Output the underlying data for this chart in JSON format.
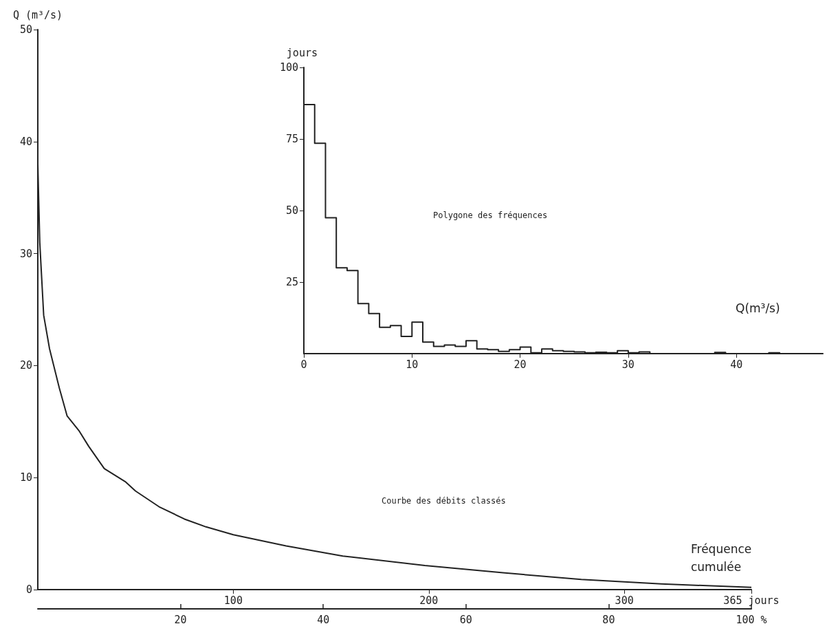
{
  "chart_data": [
    {
      "type": "line",
      "ylabel": "Q (m³/s)",
      "xlabel": "Fréquence cumulée",
      "annotations": [
        "Courbe des débits classés"
      ],
      "color": "#222222",
      "x": [
        0,
        1,
        3,
        6,
        11,
        15,
        21,
        26,
        34,
        45,
        50,
        62,
        75,
        86,
        100,
        127,
        156,
        198,
        238,
        278,
        319,
        365
      ],
      "values": [
        38,
        31,
        24.5,
        21.5,
        18,
        15.5,
        14.2,
        12.8,
        10.8,
        9.6,
        8.8,
        7.4,
        6.3,
        5.6,
        4.9,
        3.9,
        3.0,
        2.15,
        1.5,
        0.9,
        0.5,
        0.2
      ],
      "xlim": [
        0,
        365
      ],
      "xticks": [
        100,
        200,
        300,
        {
          "value": 365,
          "label": "365 jours"
        }
      ],
      "ylim": [
        0,
        50
      ],
      "yticks": [
        0,
        10,
        20,
        30,
        40,
        50
      ],
      "x2lim": [
        0,
        100
      ],
      "x2ticks": [
        20,
        40,
        60,
        80,
        {
          "value": 100,
          "label": "100 %"
        }
      ]
    },
    {
      "type": "histogram",
      "ylabel": "jours",
      "xlabel": "Q(m³/s)",
      "annotations": [
        "Polygone des fréquences"
      ],
      "color": "#222222",
      "bins": [
        0,
        1,
        2,
        3,
        4,
        5,
        6,
        7,
        8,
        9,
        10,
        11,
        12,
        13,
        14,
        15,
        16,
        17,
        18,
        19,
        20,
        21,
        22,
        23,
        24,
        25,
        26,
        27,
        28,
        29,
        30,
        31,
        32,
        33,
        34,
        35,
        36,
        37,
        38,
        39,
        40,
        41,
        42,
        43,
        44,
        45,
        46,
        47,
        48
      ],
      "values": [
        87,
        73.5,
        47.5,
        30,
        29,
        17.5,
        14,
        9.2,
        9.8,
        6,
        11,
        4,
        2.5,
        3,
        2.5,
        4.5,
        1.6,
        1.4,
        0.8,
        1.4,
        2.3,
        0.3,
        1.6,
        1,
        0.8,
        0.6,
        0.3,
        0.5,
        0.3,
        1,
        0.3,
        0.6,
        0,
        0,
        0,
        0,
        0,
        0,
        0.4,
        0,
        0,
        0,
        0,
        0.3,
        0,
        0,
        0,
        0
      ],
      "xlim": [
        0,
        48
      ],
      "xticks": [
        0,
        10,
        20,
        30,
        40
      ],
      "ylim": [
        0,
        100
      ],
      "yticks": [
        25,
        50,
        75,
        100
      ]
    }
  ]
}
